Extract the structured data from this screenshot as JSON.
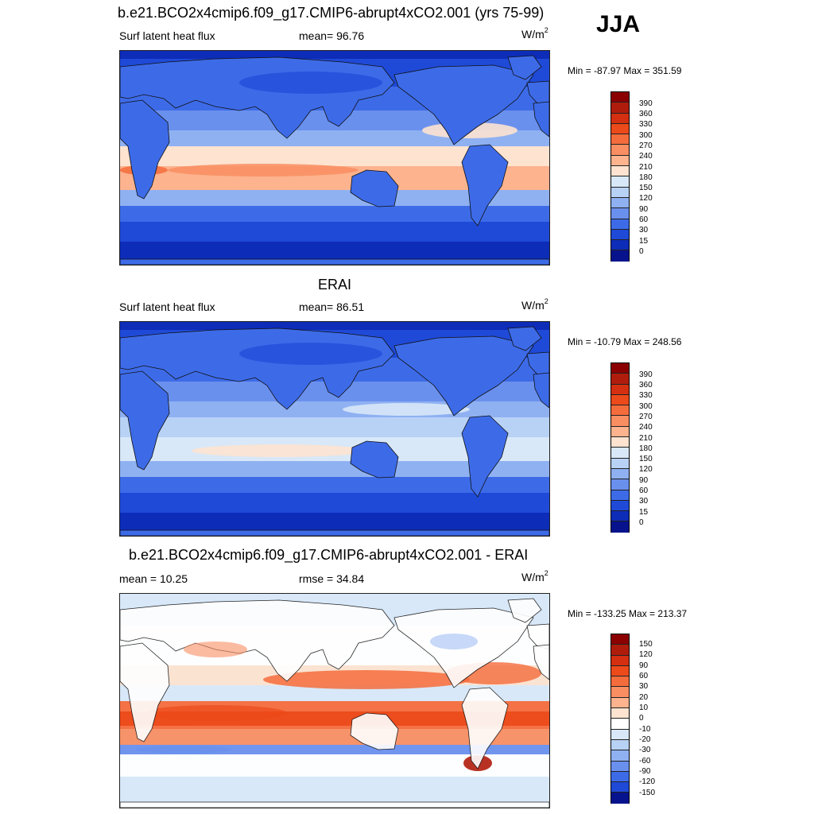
{
  "season": "JJA",
  "panels": [
    {
      "title": "b.e21.BCO2x4cmip6.f09_g17.CMIP6-abrupt4xCO2.001 (yrs 75-99)",
      "left_label": "Surf latent heat flux",
      "mid_label": "mean=  96.76",
      "units_base": "W/m",
      "units_exp": "2",
      "minmax": "Min = -87.97 Max = 351.59",
      "colorbar_labels": [
        "390",
        "360",
        "330",
        "300",
        "270",
        "240",
        "210",
        "180",
        "150",
        "120",
        "90",
        "60",
        "30",
        "15",
        "0"
      ],
      "map_style": "model"
    },
    {
      "title": "ERAI",
      "left_label": "Surf latent heat flux",
      "mid_label": "mean=  86.51",
      "units_base": "W/m",
      "units_exp": "2",
      "minmax": "Min = -10.79 Max = 248.56",
      "colorbar_labels": [
        "390",
        "360",
        "330",
        "300",
        "270",
        "240",
        "210",
        "180",
        "150",
        "120",
        "90",
        "60",
        "30",
        "15",
        "0"
      ],
      "map_style": "obs"
    },
    {
      "title": "b.e21.BCO2x4cmip6.f09_g17.CMIP6-abrupt4xCO2.001 - ERAI",
      "left_label": "mean =  10.25",
      "mid_label": "rmse =  34.84",
      "units_base": "W/m",
      "units_exp": "2",
      "minmax": "Min = -133.25 Max = 213.37",
      "colorbar_labels": [
        "150",
        "120",
        "90",
        "60",
        "30",
        "20",
        "10",
        "0",
        "-10",
        "-20",
        "-30",
        "-60",
        "-90",
        "-120",
        "-150"
      ],
      "map_style": "diff"
    }
  ],
  "colors": {
    "flux_scale_top_to_bottom": [
      "#8b0000",
      "#b01c0c",
      "#d42f10",
      "#ec4a1a",
      "#f56c3c",
      "#f98e62",
      "#fcb38e",
      "#fde3d0",
      "#d8e8f8",
      "#b8d2f6",
      "#8fb1f2",
      "#6a90ee",
      "#3d6be8",
      "#1f4ad8",
      "#0d2cb8",
      "#06138c"
    ],
    "diff_scale_top_to_bottom": [
      "#8b0000",
      "#b01c0c",
      "#d42f10",
      "#ec4a1a",
      "#f56c3c",
      "#f98e62",
      "#fcb38e",
      "#fde3d0",
      "#ffffff",
      "#d8e8f8",
      "#b8d2f6",
      "#8fb1f2",
      "#6a90ee",
      "#3d6be8",
      "#1f4ad8",
      "#06138c"
    ]
  }
}
